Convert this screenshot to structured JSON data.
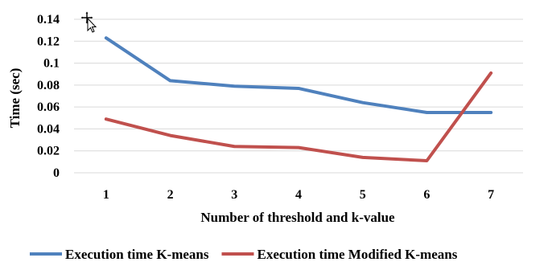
{
  "chart_data": {
    "type": "line",
    "title": "",
    "xlabel": "Number of threshold and k-value",
    "ylabel": "Time (sec)",
    "x": [
      1,
      2,
      3,
      4,
      5,
      6,
      7
    ],
    "ylim": [
      0,
      0.14
    ],
    "y_ticks": [
      "0",
      "0.02",
      "0.04",
      "0.06",
      "0.08",
      "0.1",
      "0.12",
      "0.14"
    ],
    "x_ticks": [
      "1",
      "2",
      "3",
      "4",
      "5",
      "6",
      "7"
    ],
    "grid": "horizontal",
    "legend_position": "bottom",
    "series": [
      {
        "name": "Execution time K-means",
        "color": "#4f81bd",
        "values": [
          0.123,
          0.084,
          0.079,
          0.077,
          0.064,
          0.055,
          0.055
        ]
      },
      {
        "name": "Execution time Modified K-means",
        "color": "#c0504d",
        "values": [
          0.049,
          0.034,
          0.024,
          0.023,
          0.014,
          0.011,
          0.091
        ]
      }
    ]
  },
  "cursor_icon": "move-cursor-icon"
}
